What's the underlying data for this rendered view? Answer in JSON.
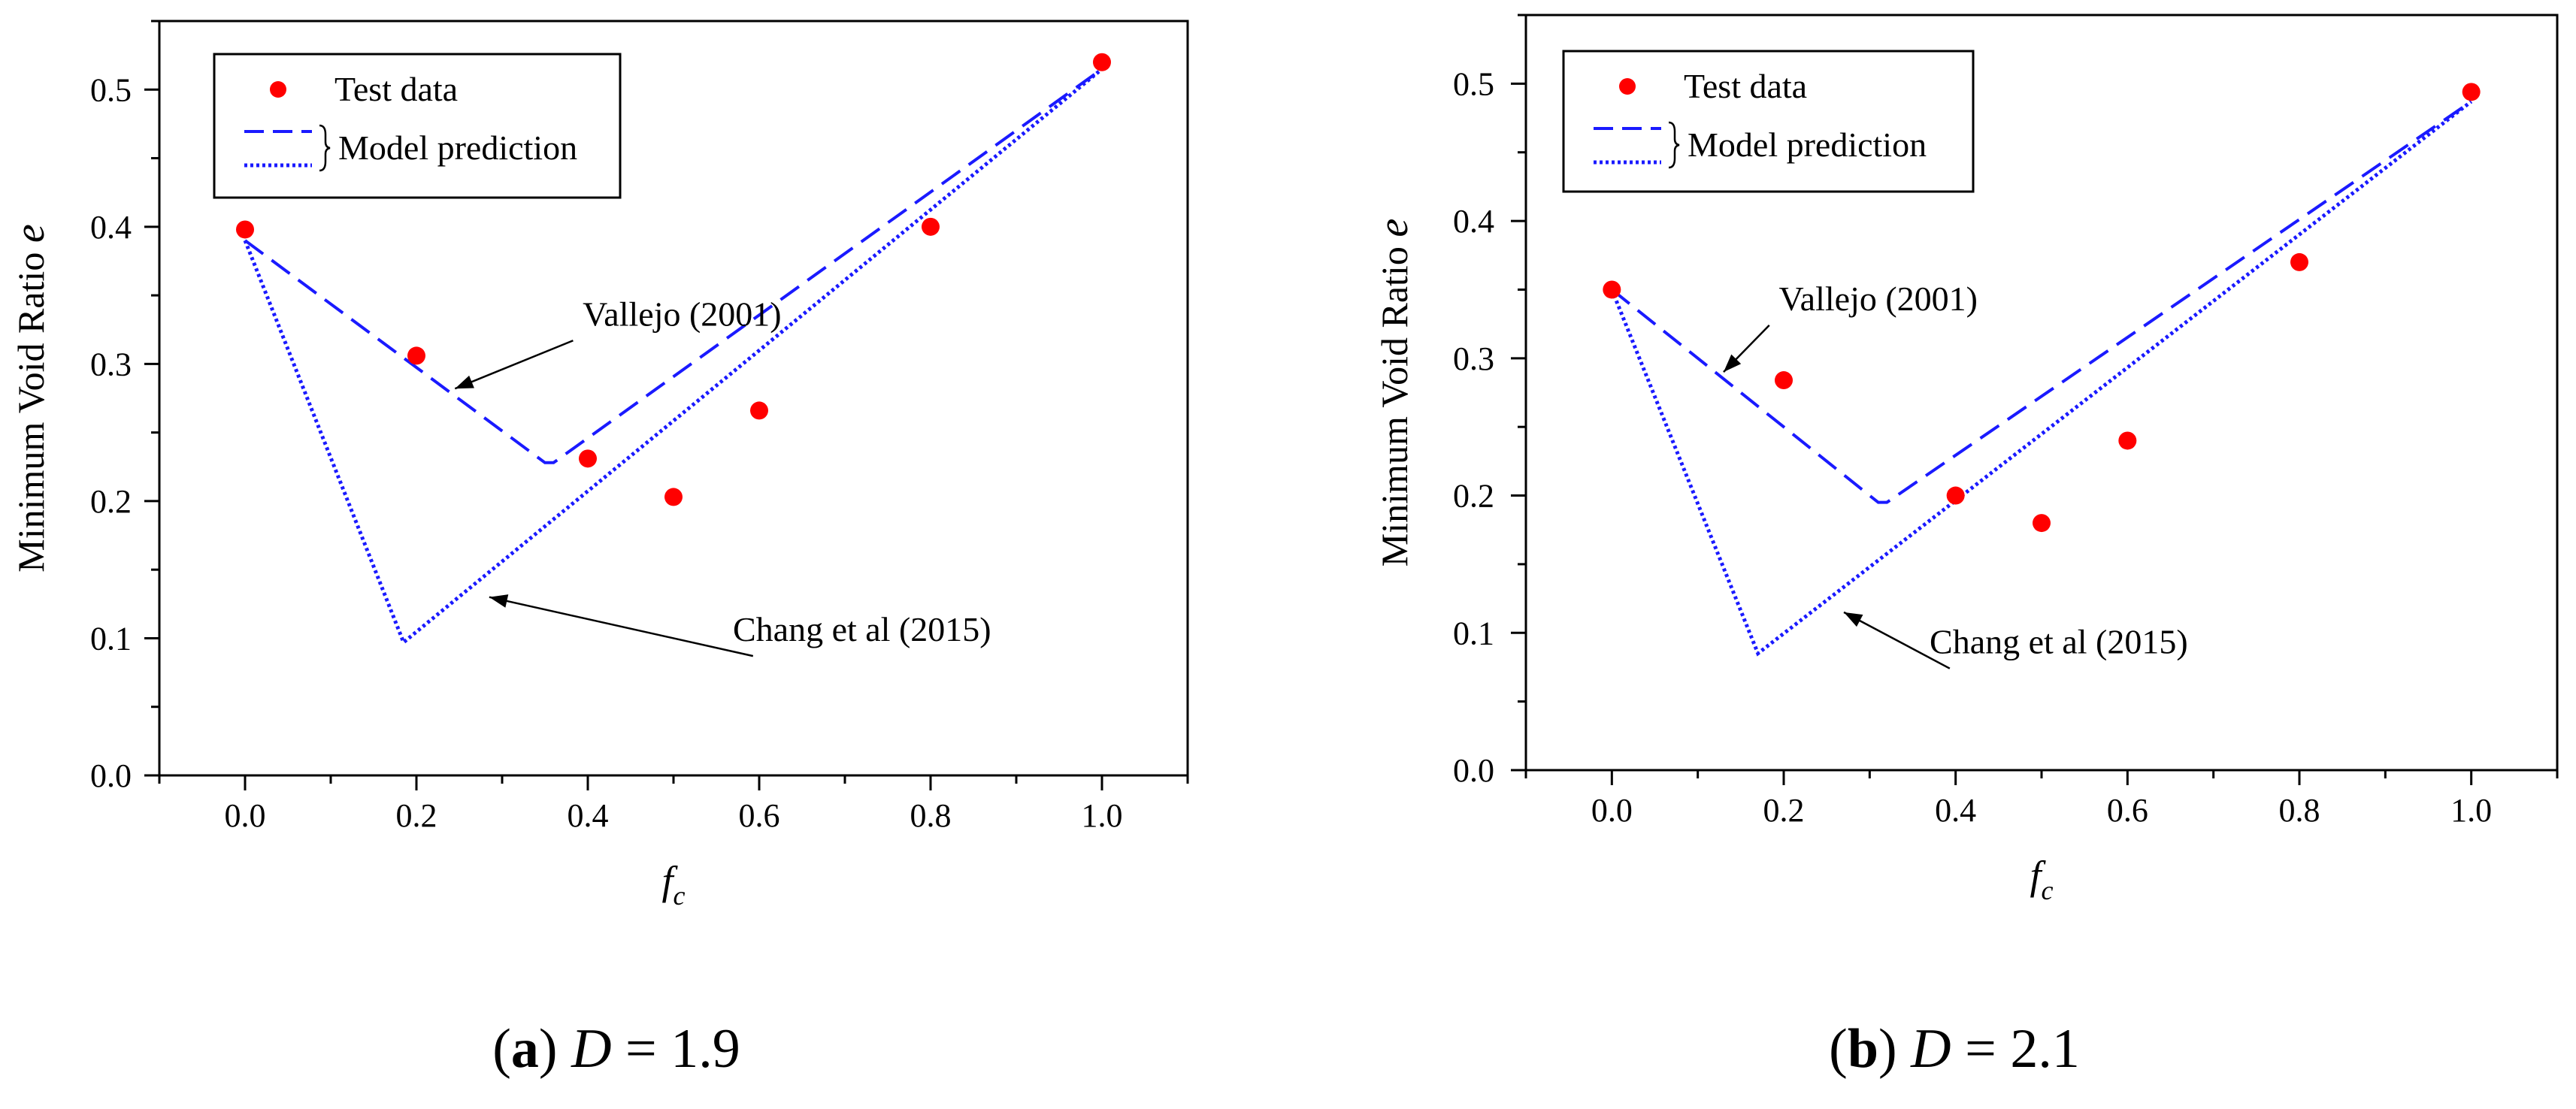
{
  "chart_data": [
    {
      "type": "scatter",
      "caption": {
        "label": "a",
        "variable": "D",
        "equals": "=",
        "value": "1.9"
      },
      "xlabel": {
        "main": "f",
        "sub": "c"
      },
      "ylabel": {
        "main": "Minimum Void Ratio ",
        "italic": "e"
      },
      "xlim": [
        -0.1,
        1.1
      ],
      "ylim": [
        0.0,
        0.55
      ],
      "x_ticks": [
        0.0,
        0.2,
        0.4,
        0.6,
        0.8,
        1.0
      ],
      "x_tick_labels": [
        "0.0",
        "0.2",
        "0.4",
        "0.6",
        "0.8",
        "1.0"
      ],
      "y_ticks": [
        0.0,
        0.1,
        0.2,
        0.3,
        0.4,
        0.5
      ],
      "y_tick_labels": [
        "0.0",
        "0.1",
        "0.2",
        "0.3",
        "0.4",
        "0.5"
      ],
      "grid": false,
      "legend": {
        "position": "top-left",
        "test_label": "Test data",
        "model_label": "Model prediction"
      },
      "test_data": {
        "x": [
          0.0,
          0.2,
          0.4,
          0.5,
          0.6,
          0.8,
          1.0
        ],
        "y": [
          0.398,
          0.306,
          0.231,
          0.203,
          0.266,
          0.4,
          0.52
        ]
      },
      "models": [
        {
          "name": "Vallejo (2001)",
          "style": "dashed",
          "x": [
            0.0,
            0.35,
            0.36,
            1.0
          ],
          "y": [
            0.39,
            0.228,
            0.228,
            0.515
          ]
        },
        {
          "name": "Chang et al (2015)",
          "style": "dotted",
          "x": [
            0.0,
            0.185,
            1.0
          ],
          "y": [
            0.39,
            0.097,
            0.515
          ]
        }
      ],
      "annotations": [
        {
          "text": "Vallejo (2001)",
          "text_at": [
            0.51,
            0.328
          ],
          "arrow_to": [
            0.245,
            0.282
          ]
        },
        {
          "text": "Chang et al (2015)",
          "text_at": [
            0.72,
            0.098
          ],
          "arrow_to": [
            0.285,
            0.13
          ]
        }
      ]
    },
    {
      "type": "scatter",
      "caption": {
        "label": "b",
        "variable": "D",
        "equals": "=",
        "value": "2.1"
      },
      "xlabel": {
        "main": "f",
        "sub": "c"
      },
      "ylabel": {
        "main": "Minimum Void Ratio ",
        "italic": "e"
      },
      "xlim": [
        -0.1,
        1.1
      ],
      "ylim": [
        0.0,
        0.55
      ],
      "x_ticks": [
        0.0,
        0.2,
        0.4,
        0.6,
        0.8,
        1.0
      ],
      "x_tick_labels": [
        "0.0",
        "0.2",
        "0.4",
        "0.6",
        "0.8",
        "1.0"
      ],
      "y_ticks": [
        0.0,
        0.1,
        0.2,
        0.3,
        0.4,
        0.5
      ],
      "y_tick_labels": [
        "0.0",
        "0.1",
        "0.2",
        "0.3",
        "0.4",
        "0.5"
      ],
      "grid": false,
      "legend": {
        "position": "top-left",
        "test_label": "Test data",
        "model_label": "Model prediction"
      },
      "test_data": {
        "x": [
          0.0,
          0.2,
          0.4,
          0.5,
          0.6,
          0.8,
          1.0
        ],
        "y": [
          0.35,
          0.284,
          0.2,
          0.18,
          0.24,
          0.37,
          0.494
        ]
      },
      "models": [
        {
          "name": "Vallejo (2001)",
          "style": "dashed",
          "x": [
            0.0,
            0.31,
            0.32,
            1.0
          ],
          "y": [
            0.35,
            0.195,
            0.195,
            0.487
          ]
        },
        {
          "name": "Chang et al (2015)",
          "style": "dotted",
          "x": [
            0.0,
            0.17,
            1.0
          ],
          "y": [
            0.35,
            0.085,
            0.487
          ]
        }
      ],
      "annotations": [
        {
          "text": "Vallejo (2001)",
          "text_at": [
            0.31,
            0.335
          ],
          "arrow_to": [
            0.13,
            0.29
          ]
        },
        {
          "text": "Chang et al (2015)",
          "text_at": [
            0.52,
            0.085
          ],
          "arrow_to": [
            0.27,
            0.115
          ]
        }
      ]
    }
  ]
}
